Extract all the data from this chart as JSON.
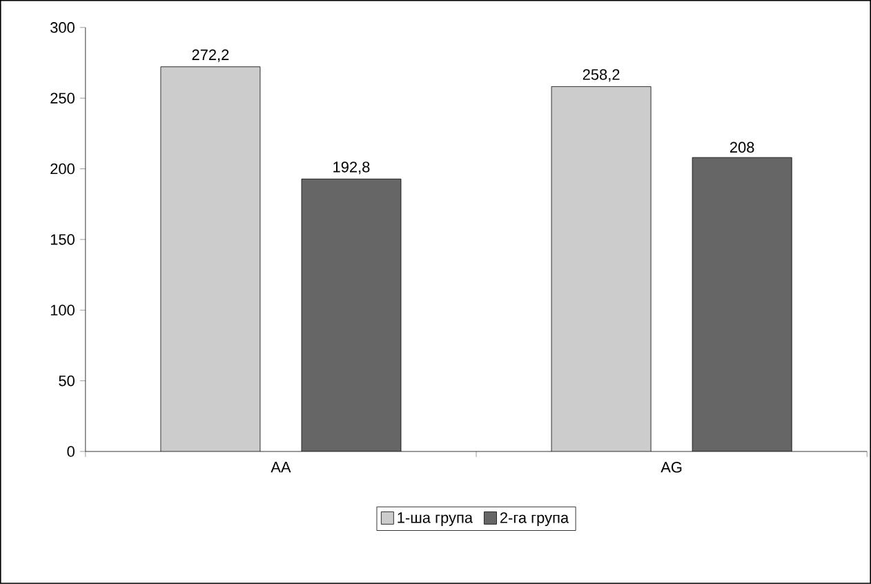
{
  "chart_data": {
    "type": "bar",
    "categories": [
      "AA",
      "AG"
    ],
    "series": [
      {
        "name": "1-ша група",
        "color": "#cccccc",
        "values": [
          272.2,
          258.2
        ],
        "value_labels": [
          "272,2",
          "258,2"
        ]
      },
      {
        "name": "2-га група",
        "color": "#666666",
        "values": [
          192.8,
          208
        ],
        "value_labels": [
          "192,8",
          "208"
        ]
      }
    ],
    "ylim": [
      0,
      300
    ],
    "yticks": [
      0,
      50,
      100,
      150,
      200,
      250,
      300
    ],
    "grid": false,
    "legend": "bottom"
  }
}
